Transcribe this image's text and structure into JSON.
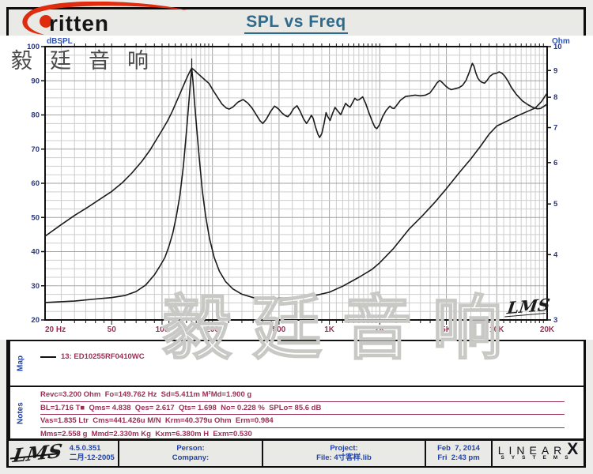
{
  "header": {
    "title": "SPL vs Freq",
    "brand_text": "ritten",
    "brand_cjk": "毅廷音响"
  },
  "colors": {
    "title": "#2d6a8c",
    "axis_label_blue": "#2f52b5",
    "tick_navy": "#27357e",
    "freq_maroon": "#9a2f55",
    "curve": "#1b1b1b",
    "grid_minor": "#cdcdcd",
    "grid_accent": "#a3a3a3",
    "plot_border": "#111111",
    "logo_red": "#df2b0e",
    "watermark_gray": "#c8c8c5"
  },
  "chart": {
    "watermark": "毅廷音响",
    "lms_logo": "LMS"
  },
  "chart_data": {
    "type": "line",
    "title": "SPL vs Freq",
    "x_axis": {
      "label": "Hz",
      "scale": "log",
      "min": 20,
      "max": 20000,
      "ticks": [
        {
          "f": 20,
          "label": "20 Hz",
          "anchor": "start"
        },
        {
          "f": 50,
          "label": "50"
        },
        {
          "f": 100,
          "label": "100"
        },
        {
          "f": 200,
          "label": "200"
        },
        {
          "f": 500,
          "label": "500"
        },
        {
          "f": 1000,
          "label": "1K"
        },
        {
          "f": 2000,
          "label": "2K"
        },
        {
          "f": 5000,
          "label": "5K"
        },
        {
          "f": 10000,
          "label": "10K"
        },
        {
          "f": 20000,
          "label": "20K"
        }
      ],
      "grid_multipliers": [
        1,
        1.1,
        1.2,
        1.3,
        1.4,
        1.5,
        1.6,
        1.7,
        1.8,
        1.9,
        2,
        2.5,
        3,
        3.5,
        4,
        4.5,
        5,
        6,
        7,
        8,
        9
      ]
    },
    "y_left": {
      "label": "dBSPL",
      "min": 20,
      "max": 100,
      "major_step": 10,
      "minor_step": 2.5
    },
    "y_right": {
      "label": "Ohm",
      "scale": "log",
      "min": 3,
      "max": 10,
      "ticks": [
        10,
        9,
        8,
        7,
        6,
        5,
        4,
        3
      ]
    },
    "legend": [
      "13: ED10255RF0410WC"
    ],
    "peak_marker": {
      "freq": 150.5,
      "db_from": 91.3,
      "db_to": 96.5
    },
    "series": [
      {
        "name": "SPL",
        "axis": "left",
        "points": [
          [
            20,
            44.5
          ],
          [
            25,
            47.9
          ],
          [
            30,
            50.6
          ],
          [
            36,
            53
          ],
          [
            43,
            55.5
          ],
          [
            50,
            57.6
          ],
          [
            58,
            60.2
          ],
          [
            66,
            63
          ],
          [
            76,
            66.5
          ],
          [
            85,
            69.8
          ],
          [
            92,
            72.6
          ],
          [
            100,
            75.5
          ],
          [
            108,
            78.3
          ],
          [
            115,
            81
          ],
          [
            123,
            84.3
          ],
          [
            130,
            87
          ],
          [
            137,
            89.6
          ],
          [
            143,
            91.6
          ],
          [
            148,
            93.1
          ],
          [
            150.5,
            93.7
          ],
          [
            156,
            93.1
          ],
          [
            162,
            92.3
          ],
          [
            170,
            91.4
          ],
          [
            180,
            90.3
          ],
          [
            191,
            89.2
          ],
          [
            203,
            87
          ],
          [
            215,
            85.1
          ],
          [
            228,
            83.2
          ],
          [
            242,
            82
          ],
          [
            252,
            81.7
          ],
          [
            265,
            82.3
          ],
          [
            285,
            83.8
          ],
          [
            305,
            84.5
          ],
          [
            325,
            83.5
          ],
          [
            345,
            82
          ],
          [
            365,
            80.1
          ],
          [
            385,
            78.3
          ],
          [
            400,
            77.5
          ],
          [
            420,
            78.8
          ],
          [
            445,
            81
          ],
          [
            470,
            82.6
          ],
          [
            495,
            81.8
          ],
          [
            520,
            80.6
          ],
          [
            545,
            79.8
          ],
          [
            565,
            79.5
          ],
          [
            585,
            80.3
          ],
          [
            610,
            81.8
          ],
          [
            640,
            82.7
          ],
          [
            670,
            81
          ],
          [
            700,
            78.9
          ],
          [
            730,
            77.5
          ],
          [
            755,
            78.6
          ],
          [
            780,
            79.9
          ],
          [
            800,
            79
          ],
          [
            825,
            76.6
          ],
          [
            855,
            74.3
          ],
          [
            875,
            73.4
          ],
          [
            900,
            74.5
          ],
          [
            930,
            77.5
          ],
          [
            955,
            80.7
          ],
          [
            975,
            79.6
          ],
          [
            1010,
            78.4
          ],
          [
            1045,
            80.5
          ],
          [
            1080,
            82.2
          ],
          [
            1125,
            81.1
          ],
          [
            1170,
            80.1
          ],
          [
            1210,
            81.8
          ],
          [
            1250,
            83.4
          ],
          [
            1290,
            82.7
          ],
          [
            1330,
            82.3
          ],
          [
            1375,
            83.6
          ],
          [
            1420,
            84.9
          ],
          [
            1465,
            84.3
          ],
          [
            1510,
            84.5
          ],
          [
            1580,
            85.3
          ],
          [
            1650,
            83.3
          ],
          [
            1730,
            80.4
          ],
          [
            1810,
            77.9
          ],
          [
            1870,
            76.4
          ],
          [
            1920,
            76
          ],
          [
            1990,
            77.1
          ],
          [
            2080,
            79.5
          ],
          [
            2180,
            81.3
          ],
          [
            2300,
            82.6
          ],
          [
            2370,
            82
          ],
          [
            2440,
            81.9
          ],
          [
            2530,
            82.9
          ],
          [
            2660,
            84.3
          ],
          [
            2850,
            85.4
          ],
          [
            3050,
            85.6
          ],
          [
            3250,
            85.8
          ],
          [
            3500,
            85.6
          ],
          [
            3750,
            85.8
          ],
          [
            3980,
            86.4
          ],
          [
            4200,
            87.9
          ],
          [
            4400,
            89.4
          ],
          [
            4560,
            90.1
          ],
          [
            4720,
            89.5
          ],
          [
            4940,
            88.5
          ],
          [
            5150,
            87.8
          ],
          [
            5350,
            87.4
          ],
          [
            5650,
            87.7
          ],
          [
            5950,
            88
          ],
          [
            6250,
            88.7
          ],
          [
            6550,
            90.1
          ],
          [
            6850,
            92.5
          ],
          [
            7050,
            94.3
          ],
          [
            7150,
            95.1
          ],
          [
            7300,
            94.3
          ],
          [
            7500,
            92.3
          ],
          [
            7700,
            90.8
          ],
          [
            7950,
            89.9
          ],
          [
            8200,
            89.5
          ],
          [
            8450,
            89.3
          ],
          [
            8750,
            90.1
          ],
          [
            9100,
            91.3
          ],
          [
            9500,
            92
          ],
          [
            9950,
            92.2
          ],
          [
            10350,
            92.6
          ],
          [
            10750,
            92.2
          ],
          [
            11150,
            91.4
          ],
          [
            11650,
            90
          ],
          [
            12250,
            88
          ],
          [
            13100,
            86
          ],
          [
            14250,
            84.1
          ],
          [
            15350,
            83
          ],
          [
            16450,
            82.2
          ],
          [
            17450,
            81.8
          ],
          [
            18250,
            81.9
          ],
          [
            19100,
            82.5
          ],
          [
            20000,
            83.2
          ]
        ]
      },
      {
        "name": "Impedance",
        "axis": "right",
        "points": [
          [
            20,
            3.24
          ],
          [
            30,
            3.26
          ],
          [
            40,
            3.29
          ],
          [
            50,
            3.31
          ],
          [
            60,
            3.34
          ],
          [
            70,
            3.4
          ],
          [
            80,
            3.5
          ],
          [
            90,
            3.66
          ],
          [
            97,
            3.8
          ],
          [
            104,
            3.95
          ],
          [
            110,
            4.15
          ],
          [
            116,
            4.4
          ],
          [
            122,
            4.75
          ],
          [
            128,
            5.2
          ],
          [
            134,
            5.9
          ],
          [
            140,
            6.9
          ],
          [
            145,
            7.9
          ],
          [
            148,
            8.6
          ],
          [
            150.5,
            9.1
          ],
          [
            153,
            8.6
          ],
          [
            156,
            7.9
          ],
          [
            161,
            7
          ],
          [
            167,
            6.1
          ],
          [
            174,
            5.3
          ],
          [
            182,
            4.75
          ],
          [
            192,
            4.3
          ],
          [
            205,
            3.95
          ],
          [
            220,
            3.72
          ],
          [
            240,
            3.55
          ],
          [
            265,
            3.44
          ],
          [
            300,
            3.36
          ],
          [
            350,
            3.31
          ],
          [
            420,
            3.29
          ],
          [
            500,
            3.3
          ],
          [
            600,
            3.31
          ],
          [
            700,
            3.32
          ],
          [
            850,
            3.35
          ],
          [
            1000,
            3.39
          ],
          [
            1200,
            3.48
          ],
          [
            1500,
            3.62
          ],
          [
            1800,
            3.75
          ],
          [
            2000,
            3.86
          ],
          [
            2400,
            4.1
          ],
          [
            3000,
            4.48
          ],
          [
            3600,
            4.75
          ],
          [
            4300,
            5.05
          ],
          [
            5000,
            5.35
          ],
          [
            6000,
            5.75
          ],
          [
            7000,
            6.1
          ],
          [
            8000,
            6.45
          ],
          [
            9000,
            6.8
          ],
          [
            10000,
            7.05
          ],
          [
            11500,
            7.2
          ],
          [
            13000,
            7.35
          ],
          [
            15000,
            7.5
          ],
          [
            17000,
            7.63
          ],
          [
            18500,
            7.85
          ],
          [
            20000,
            8.15
          ]
        ]
      }
    ]
  },
  "map": {
    "label": "Map",
    "legend": "13: ED10255RF0410WC"
  },
  "notes": {
    "label": "Notes",
    "lines": [
      "Revc=3.200 Ohm  Fo=149.762 Hz  Sd=5.411m M²Md=1.900 g",
      "BL=1.716 T■  Qms= 4.838  Qes= 2.617  Qts= 1.698  No= 0.228 %  SPLo= 85.6 dB",
      "Vas=1.835 Ltr  Cms=441.426u M/N  Krm=40.379u Ohm  Erm=0.984",
      "Mms=2.558 g  Mmd=2.330m Kg  Kxm=6.380m H  Exm=0.530"
    ]
  },
  "footer": {
    "lms_logo": "LMS",
    "version": "4.5.0.351",
    "version_date": "二月-12-2005",
    "person_label": "Person:",
    "company_label": "Company:",
    "project_label": "Project:",
    "file_label": "File: 4寸客样.lib",
    "date": "Feb  7, 2014",
    "time": "Fri  2:43 pm",
    "linearx_word": "LINEAR",
    "linearx_x": "X",
    "systems_word": "SYSTEMS"
  }
}
